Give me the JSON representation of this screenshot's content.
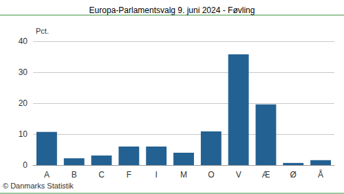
{
  "chart_data": {
    "type": "bar",
    "title": "Europa-Parlamentsvalg 9. juni 2024 - Føvling",
    "y_label": "Pct.",
    "source": "© Danmarks Statistik",
    "categories": [
      "A",
      "B",
      "C",
      "F",
      "I",
      "M",
      "O",
      "V",
      "Æ",
      "Ø",
      "Å"
    ],
    "values": [
      10.7,
      2.2,
      3.1,
      6.0,
      6.0,
      4.0,
      10.9,
      35.8,
      19.6,
      0.7,
      1.6
    ],
    "color": "#236192",
    "ylim": [
      0,
      40
    ],
    "yticks": [
      0,
      10,
      20,
      30,
      40
    ],
    "grid": true
  }
}
